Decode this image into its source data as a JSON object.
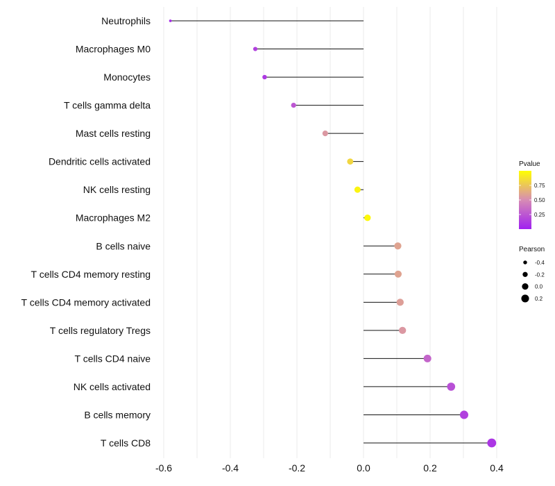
{
  "chart_data": {
    "type": "lollipop",
    "categories": [
      "Neutrophils",
      "Macrophages M0",
      "Monocytes",
      "T cells gamma delta",
      "Mast cells resting",
      "Dendritic cells activated",
      "NK cells resting",
      "Macrophages M2",
      "B cells naive",
      "T cells CD4 memory resting",
      "T cells CD4 memory activated",
      "T cells regulatory  Tregs ",
      "T cells CD4 naive",
      "NK cells activated",
      "B cells memory",
      "T cells CD8"
    ],
    "pearson": [
      -0.58,
      -0.325,
      -0.297,
      -0.21,
      -0.115,
      -0.04,
      -0.018,
      0.012,
      0.103,
      0.104,
      0.11,
      0.117,
      0.192,
      0.263,
      0.302,
      0.385
    ],
    "pvalue": [
      0.05,
      0.15,
      0.12,
      0.25,
      0.55,
      0.82,
      0.95,
      0.97,
      0.6,
      0.6,
      0.58,
      0.55,
      0.32,
      0.22,
      0.15,
      0.1
    ],
    "x_ticks": [
      "-0.6",
      "-0.4",
      "-0.2",
      "0.0",
      "0.2",
      "0.4"
    ],
    "x_tick_values": [
      -0.6,
      -0.4,
      -0.2,
      0.0,
      0.2,
      0.4
    ],
    "xlim": [
      -0.66,
      0.45
    ],
    "xlabel": "",
    "ylabel": "",
    "grid": true,
    "legend_color": {
      "title": "Pvalue",
      "ticks": [
        "0.75",
        "0.50",
        "0.25"
      ],
      "tick_values": [
        0.75,
        0.5,
        0.25
      ],
      "range": [
        0.0,
        1.0
      ],
      "colors": [
        "#a020f0",
        "#ffff00"
      ]
    },
    "legend_size": {
      "title": "Pearson",
      "labels": [
        "-0.4",
        "-0.2",
        "0.0",
        "0.2"
      ],
      "values": [
        -0.4,
        -0.2,
        0.0,
        0.2
      ]
    },
    "legend_position": "right"
  },
  "colors": {
    "segment": "#111111",
    "grid": "#ebebeb",
    "background": "#ffffff"
  }
}
